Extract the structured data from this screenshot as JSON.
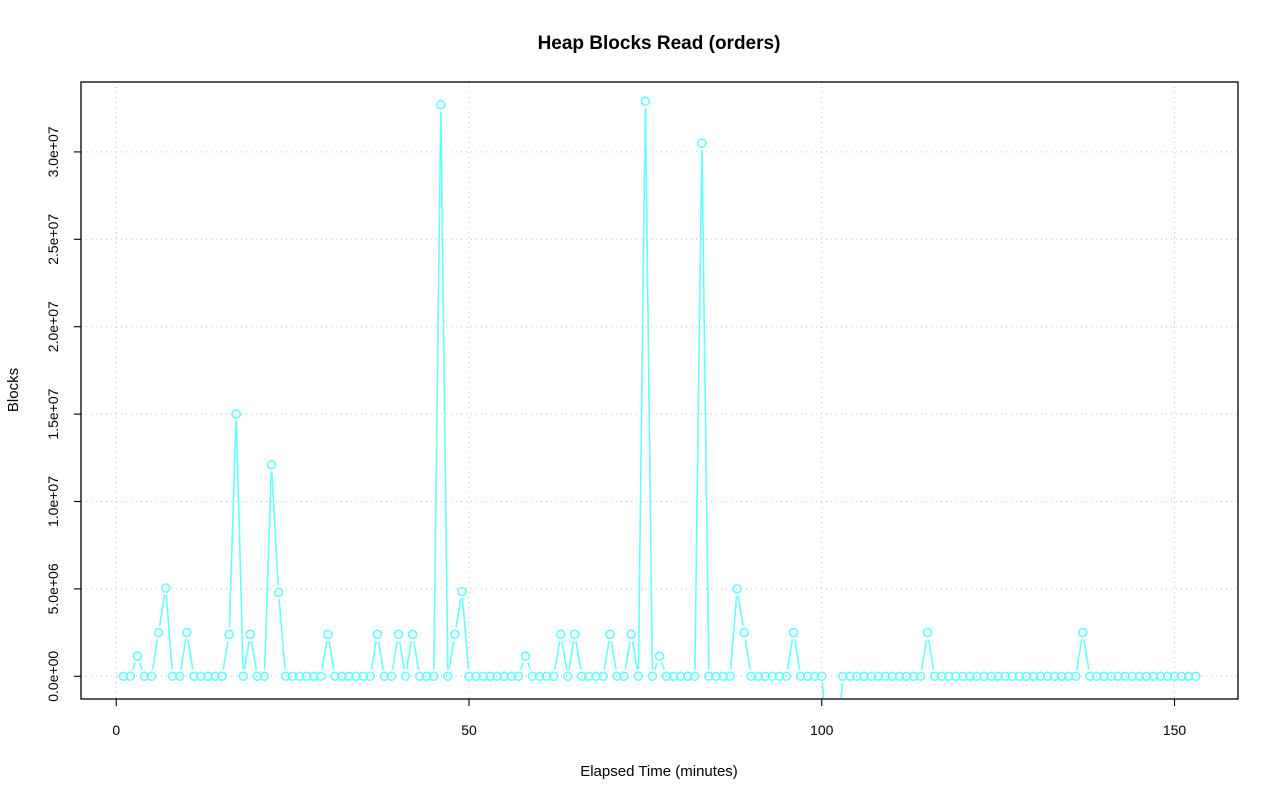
{
  "chart_data": {
    "type": "line",
    "title": "Heap Blocks Read (orders)",
    "xlabel": "Elapsed Time (minutes)",
    "ylabel": "Blocks",
    "xlim": [
      -5,
      159
    ],
    "ylim": [
      -1300000,
      34000000
    ],
    "x_ticks": [
      0,
      50,
      100,
      150
    ],
    "x_tick_labels": [
      "0",
      "50",
      "100",
      "150"
    ],
    "y_ticks": [
      0,
      5000000,
      10000000,
      15000000,
      20000000,
      25000000,
      30000000
    ],
    "y_tick_labels": [
      "0.0e+00",
      "5.0e+06",
      "1.0e+07",
      "1.5e+07",
      "2.0e+07",
      "2.5e+07",
      "3.0e+07"
    ],
    "grid": true,
    "color": "#66ffff",
    "x_start": 1,
    "values": [
      0,
      0,
      1150000,
      0,
      0,
      2500000,
      5050000,
      0,
      0,
      2500000,
      0,
      0,
      0,
      0,
      0,
      2400000,
      15000000,
      0,
      2400000,
      0,
      0,
      12100000,
      4800000,
      0,
      0,
      0,
      0,
      0,
      0,
      2400000,
      0,
      0,
      0,
      0,
      0,
      0,
      2400000,
      0,
      0,
      2400000,
      0,
      2400000,
      0,
      0,
      0,
      32700000,
      0,
      2400000,
      4850000,
      0,
      0,
      0,
      0,
      0,
      0,
      0,
      0,
      1150000,
      0,
      0,
      0,
      0,
      2400000,
      0,
      2400000,
      0,
      0,
      0,
      0,
      2400000,
      0,
      0,
      2400000,
      0,
      32900000,
      0,
      1150000,
      0,
      0,
      0,
      0,
      0,
      30500000,
      0,
      0,
      0,
      0,
      5000000,
      2500000,
      0,
      0,
      0,
      0,
      0,
      0,
      2500000,
      0,
      0,
      0,
      0,
      null,
      null,
      0,
      0,
      0,
      0,
      0,
      0,
      0,
      0,
      0,
      0,
      0,
      0,
      2500000,
      0,
      0,
      0,
      0,
      0,
      0,
      0,
      0,
      0,
      0,
      0,
      0,
      0,
      0,
      0,
      0,
      0,
      0,
      0,
      0,
      0,
      2500000,
      0,
      0,
      0,
      0,
      0,
      0,
      0,
      0,
      0,
      0,
      0,
      0,
      0,
      0,
      0,
      0
    ]
  }
}
